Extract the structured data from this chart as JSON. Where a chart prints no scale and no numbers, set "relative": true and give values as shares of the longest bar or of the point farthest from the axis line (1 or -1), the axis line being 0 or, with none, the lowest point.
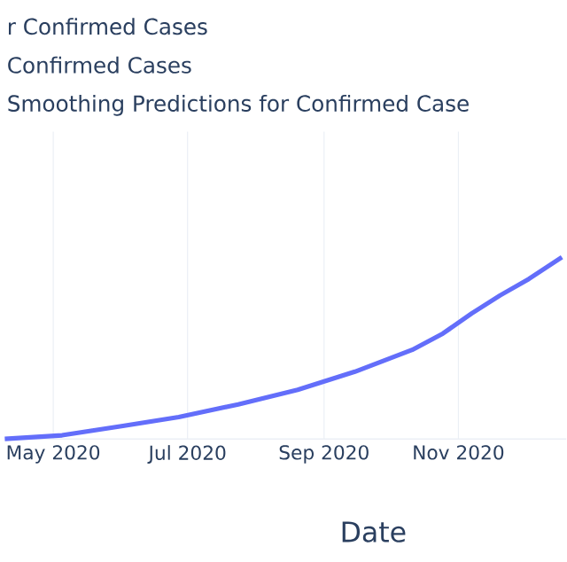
{
  "chart_data": {
    "type": "line",
    "xlabel": "Date",
    "relative": true,
    "grid": "x",
    "annotations": [
      "r Confirmed Cases",
      "Confirmed Cases",
      "Smoothing Predictions for Confirmed Case"
    ],
    "xlim": [
      "2020-04-09",
      "2020-12-20"
    ],
    "xticks": [
      {
        "value": "2020-05-01",
        "label": "May 2020"
      },
      {
        "value": "2020-07-01",
        "label": "Jul 2020"
      },
      {
        "value": "2020-09-01",
        "label": "Sep 2020"
      },
      {
        "value": "2020-11-01",
        "label": "Nov 2020"
      }
    ],
    "series": [
      {
        "color": "#636efa",
        "x": [
          "2020-04-09",
          "2020-05-05",
          "2020-06-01",
          "2020-06-27",
          "2020-07-24",
          "2020-08-20",
          "2020-09-15",
          "2020-10-11",
          "2020-10-25",
          "2020-11-07",
          "2020-11-20",
          "2020-12-03",
          "2020-12-18"
        ],
        "values": [
          0,
          0.02,
          0.07,
          0.12,
          0.19,
          0.27,
          0.37,
          0.49,
          0.58,
          0.69,
          0.79,
          0.88,
          1.0
        ]
      }
    ]
  }
}
